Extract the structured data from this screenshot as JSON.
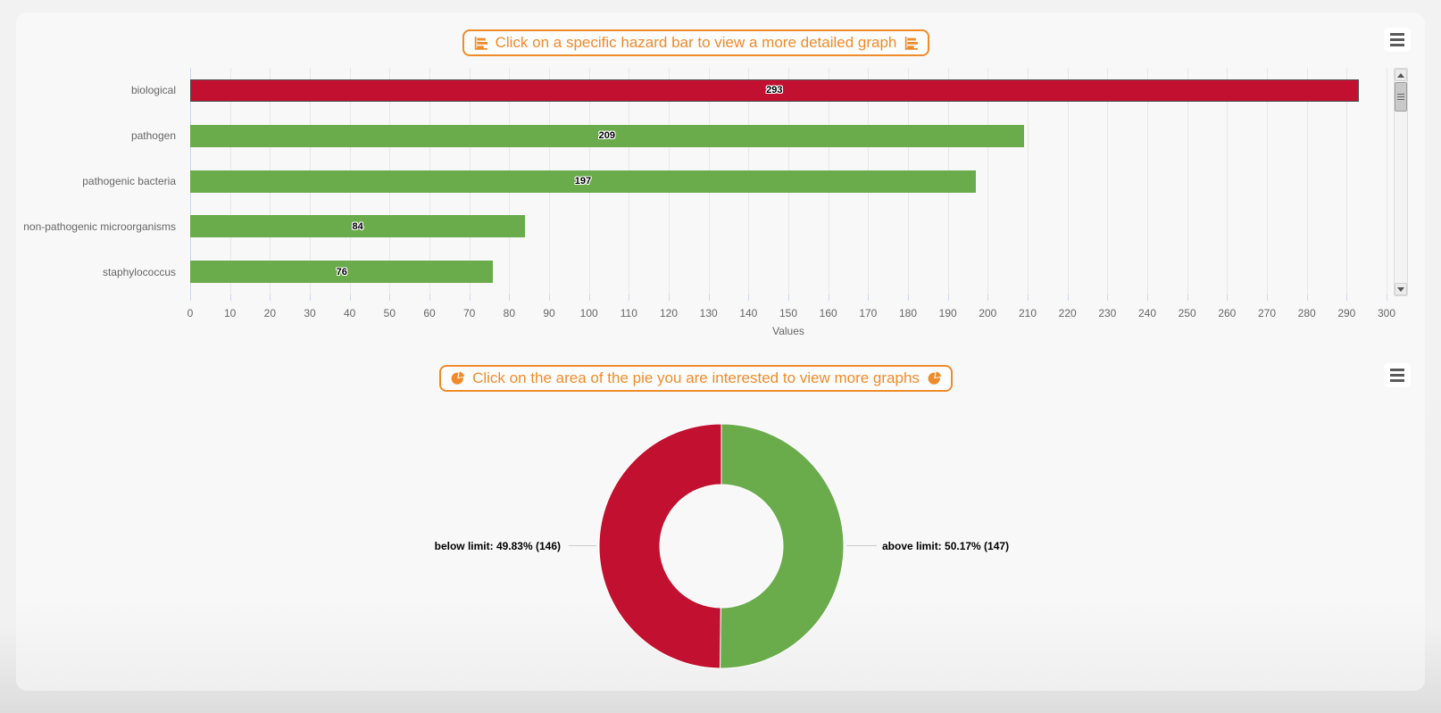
{
  "chart_data": [
    {
      "type": "bar",
      "orientation": "horizontal",
      "title": "Click on a specific hazard bar to view a more detailed graph",
      "categories": [
        "biological",
        "pathogen",
        "pathogenic bacteria",
        "non-pathogenic microorganisms",
        "staphylococcus"
      ],
      "values": [
        293,
        209,
        197,
        84,
        76
      ],
      "bar_colors": [
        "#c21130",
        "#6aab4c",
        "#6aab4c",
        "#6aab4c",
        "#6aab4c"
      ],
      "selected_index": 0,
      "xlabel": "Values",
      "xlim": [
        0,
        300
      ],
      "tick_step": 10,
      "grid": true,
      "scrollbar": true
    },
    {
      "type": "pie",
      "donut": true,
      "title": "Click on the area of the pie you are interested to view more graphs",
      "start_angle": -90,
      "direction": "clockwise",
      "slices": [
        {
          "name": "above limit",
          "value": 147,
          "pct": 50.17,
          "color": "#6aab4c",
          "side": "right",
          "label": "above limit: 50.17% (147)"
        },
        {
          "name": "below limit",
          "value": 146,
          "pct": 49.83,
          "color": "#c21130",
          "side": "left",
          "label": "below limit: 49.83% (146)"
        }
      ],
      "legend": "off"
    }
  ],
  "icons": {
    "bar_title_icon": "bar-chart",
    "pie_title_icon": "pie-chart",
    "menu_icon": "hamburger-menu",
    "scroll_up_icon": "triangle-up",
    "scroll_down_icon": "triangle-down"
  },
  "colors": {
    "accent_orange": "#ef8b2a",
    "bar_red": "#c21130",
    "bar_green": "#6aab4c",
    "selected_border": "#4d4d4d",
    "axis_text": "#666666",
    "grid_line": "#e7e7e7",
    "axis_line": "#ccd6eb",
    "connector": "#cccccc"
  }
}
